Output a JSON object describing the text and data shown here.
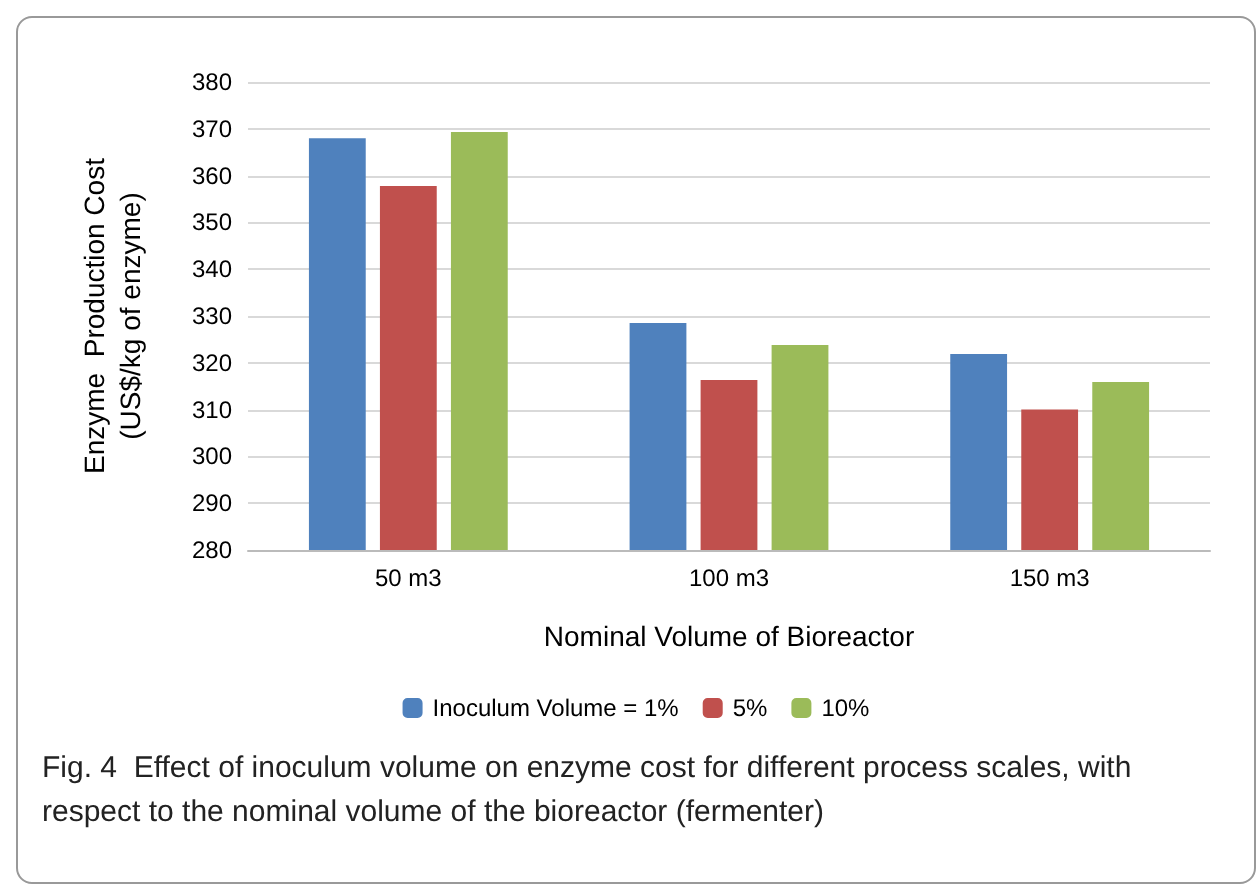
{
  "chart_data": {
    "type": "bar",
    "xlabel": "Nominal Volume of Bioreactor",
    "ylabel": "Enzyme  Production Cost\n(US$/kg of enzyme)",
    "categories": [
      "50 m3",
      "100 m3",
      "150 m3"
    ],
    "series": [
      {
        "name": "Inoculum Volume = 1%",
        "color": "#4f81bd",
        "values": [
          368,
          328.5,
          321.9
        ]
      },
      {
        "name": "5%",
        "color": "#c0504d",
        "values": [
          357.8,
          316.3,
          310
        ]
      },
      {
        "name": "10%",
        "color": "#9bbb59",
        "values": [
          369.3,
          323.8,
          315.9
        ]
      }
    ],
    "ylim": [
      280,
      380
    ],
    "yticks": [
      280,
      290,
      300,
      310,
      320,
      330,
      340,
      350,
      360,
      370,
      380
    ],
    "grid": "y",
    "legend": "bottom",
    "annotations": [
      "Fig. 4  Effect of inoculum volume on enzyme cost for different process scales, with respect to the nominal volume of the bioreactor (fermenter)"
    ]
  }
}
